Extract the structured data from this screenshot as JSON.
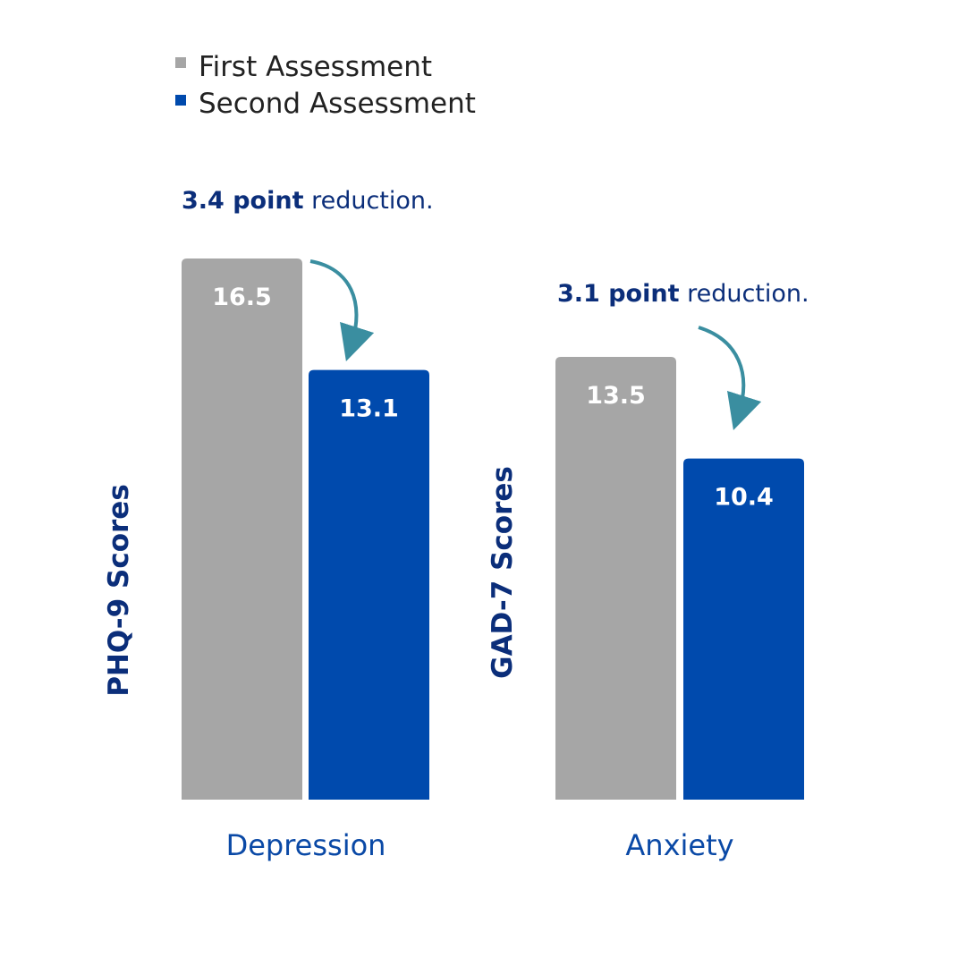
{
  "colors": {
    "first": "#a6a6a6",
    "second": "#004aad",
    "navy": "#0b2e7a",
    "arrow": "#3a8ea0",
    "category_text": "#0a49a6",
    "legend_text": "#222222"
  },
  "legend": {
    "placement": "top-left",
    "items": [
      {
        "label": "First Assessment",
        "series": "first"
      },
      {
        "label": "Second Assessment",
        "series": "second"
      }
    ]
  },
  "chart_data": {
    "type": "bar",
    "categories": [
      "Depression",
      "Anxiety"
    ],
    "series": [
      {
        "name": "First Assessment",
        "values": [
          16.5,
          13.5
        ]
      },
      {
        "name": "Second Assessment",
        "values": [
          13.1,
          10.4
        ]
      }
    ],
    "value_labels": [
      [
        "16.5",
        "13.5"
      ],
      [
        "13.1",
        "10.4"
      ]
    ],
    "ylabels": [
      "PHQ-9  Scores",
      "GAD-7  Scores"
    ],
    "annotations": [
      {
        "strong": "3.4 point",
        "rest": " reduction.",
        "category": "Depression"
      },
      {
        "strong": "3.1 point",
        "rest": " reduction.",
        "category": "Anxiety"
      }
    ],
    "ylim": [
      0,
      19.8
    ],
    "grid": false,
    "legend": "top-left"
  }
}
